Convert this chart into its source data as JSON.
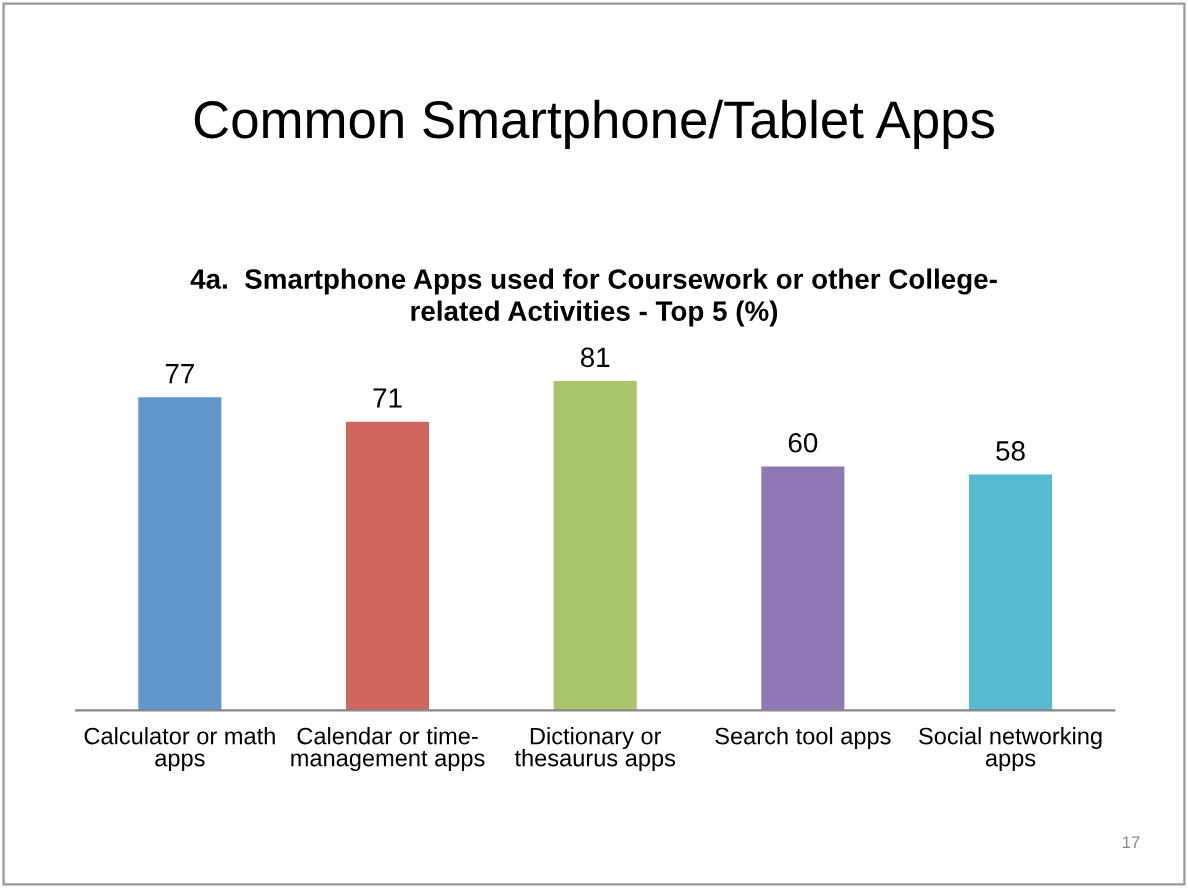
{
  "chart_data": {
    "type": "bar",
    "title": "Common Smartphone/Tablet Apps",
    "subtitle": "4a.  Smartphone Apps used for Coursework or other College-\nrelated Activities - Top 5 (%)",
    "categories": [
      "Calculator or math\napps",
      "Calendar or time-\nmanagement apps",
      "Dictionary or\nthesaurus apps",
      "Search tool apps",
      "Social networking\napps"
    ],
    "values": [
      77,
      71,
      81,
      60,
      58
    ],
    "colors": [
      "#6096cc",
      "#d0675f",
      "#a9c46a",
      "#8f78b3",
      "#57bad0"
    ],
    "data_labels": true,
    "grid": false,
    "legend": false,
    "tick_labels": "x",
    "annotations": [
      "17"
    ]
  }
}
